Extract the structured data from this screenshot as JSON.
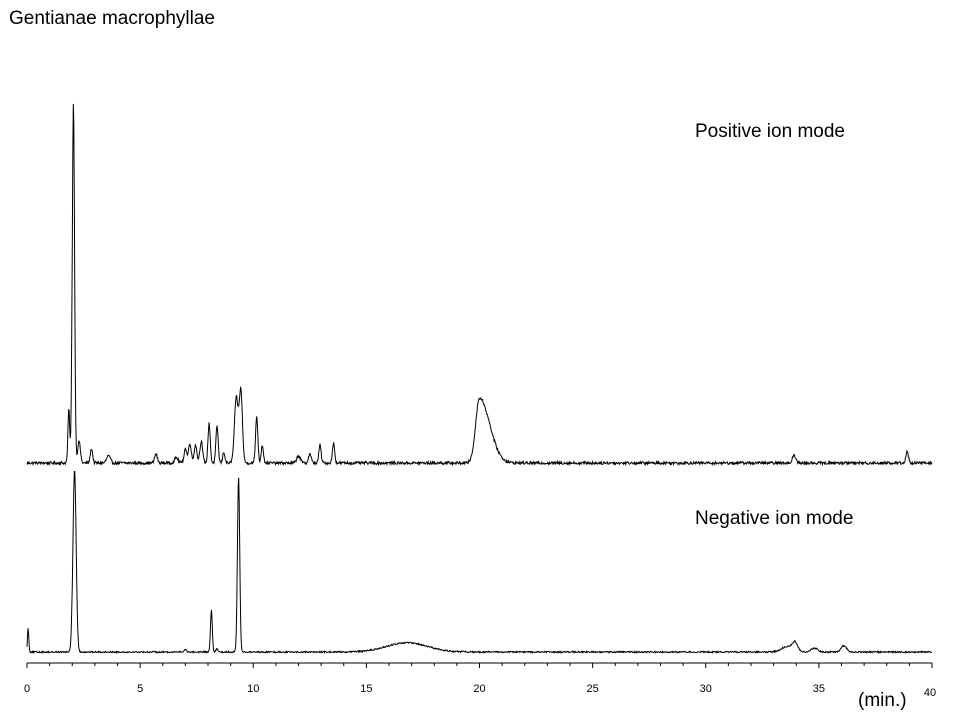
{
  "chart_data": {
    "type": "line",
    "title": "Gentianae macrophyllae",
    "xlabel": "(min.)",
    "ylabel": "",
    "xlim": [
      0,
      40
    ],
    "x_ticks": [
      0,
      5,
      10,
      15,
      20,
      25,
      30,
      35,
      40
    ],
    "grid": false,
    "series": [
      {
        "name": "Positive ion mode",
        "color": "#000000",
        "baseline": 0.02,
        "noise": 0.004,
        "peaks": [
          {
            "x": 1.85,
            "h": 0.15,
            "w": 0.04
          },
          {
            "x": 2.05,
            "h": 1.0,
            "w": 0.05
          },
          {
            "x": 2.3,
            "h": 0.06,
            "w": 0.06
          },
          {
            "x": 2.85,
            "h": 0.04,
            "w": 0.05
          },
          {
            "x": 3.6,
            "h": 0.02,
            "w": 0.08
          },
          {
            "x": 5.7,
            "h": 0.025,
            "w": 0.06
          },
          {
            "x": 6.6,
            "h": 0.015,
            "w": 0.08
          },
          {
            "x": 7.0,
            "h": 0.04,
            "w": 0.06
          },
          {
            "x": 7.2,
            "h": 0.055,
            "w": 0.06
          },
          {
            "x": 7.45,
            "h": 0.05,
            "w": 0.06
          },
          {
            "x": 7.7,
            "h": 0.06,
            "w": 0.06
          },
          {
            "x": 8.05,
            "h": 0.11,
            "w": 0.05
          },
          {
            "x": 8.4,
            "h": 0.1,
            "w": 0.05
          },
          {
            "x": 8.7,
            "h": 0.03,
            "w": 0.05
          },
          {
            "x": 9.25,
            "h": 0.18,
            "w": 0.08
          },
          {
            "x": 9.45,
            "h": 0.2,
            "w": 0.07
          },
          {
            "x": 10.15,
            "h": 0.13,
            "w": 0.05
          },
          {
            "x": 10.4,
            "h": 0.05,
            "w": 0.05
          },
          {
            "x": 12.0,
            "h": 0.02,
            "w": 0.08
          },
          {
            "x": 12.5,
            "h": 0.025,
            "w": 0.06
          },
          {
            "x": 12.95,
            "h": 0.05,
            "w": 0.05
          },
          {
            "x": 13.55,
            "h": 0.055,
            "w": 0.05
          },
          {
            "x": 20.0,
            "h": 0.18,
            "w": 0.17,
            "tail": 0.45
          },
          {
            "x": 33.9,
            "h": 0.02,
            "w": 0.08
          },
          {
            "x": 38.9,
            "h": 0.03,
            "w": 0.06
          }
        ]
      },
      {
        "name": "Negative ion mode",
        "color": "#000000",
        "baseline": 0.02,
        "noise": 0.004,
        "peaks": [
          {
            "x": 0.05,
            "h": 0.13,
            "w": 0.03
          },
          {
            "x": 2.1,
            "h": 1.0,
            "w": 0.07
          },
          {
            "x": 7.0,
            "h": 0.015,
            "w": 0.05
          },
          {
            "x": 8.15,
            "h": 0.23,
            "w": 0.04
          },
          {
            "x": 8.4,
            "h": 0.02,
            "w": 0.04
          },
          {
            "x": 9.35,
            "h": 0.96,
            "w": 0.05
          },
          {
            "x": 16.8,
            "h": 0.05,
            "w": 0.9
          },
          {
            "x": 33.6,
            "h": 0.03,
            "w": 0.25
          },
          {
            "x": 33.95,
            "h": 0.045,
            "w": 0.12
          },
          {
            "x": 34.8,
            "h": 0.02,
            "w": 0.15
          },
          {
            "x": 36.1,
            "h": 0.035,
            "w": 0.12
          }
        ]
      }
    ]
  }
}
